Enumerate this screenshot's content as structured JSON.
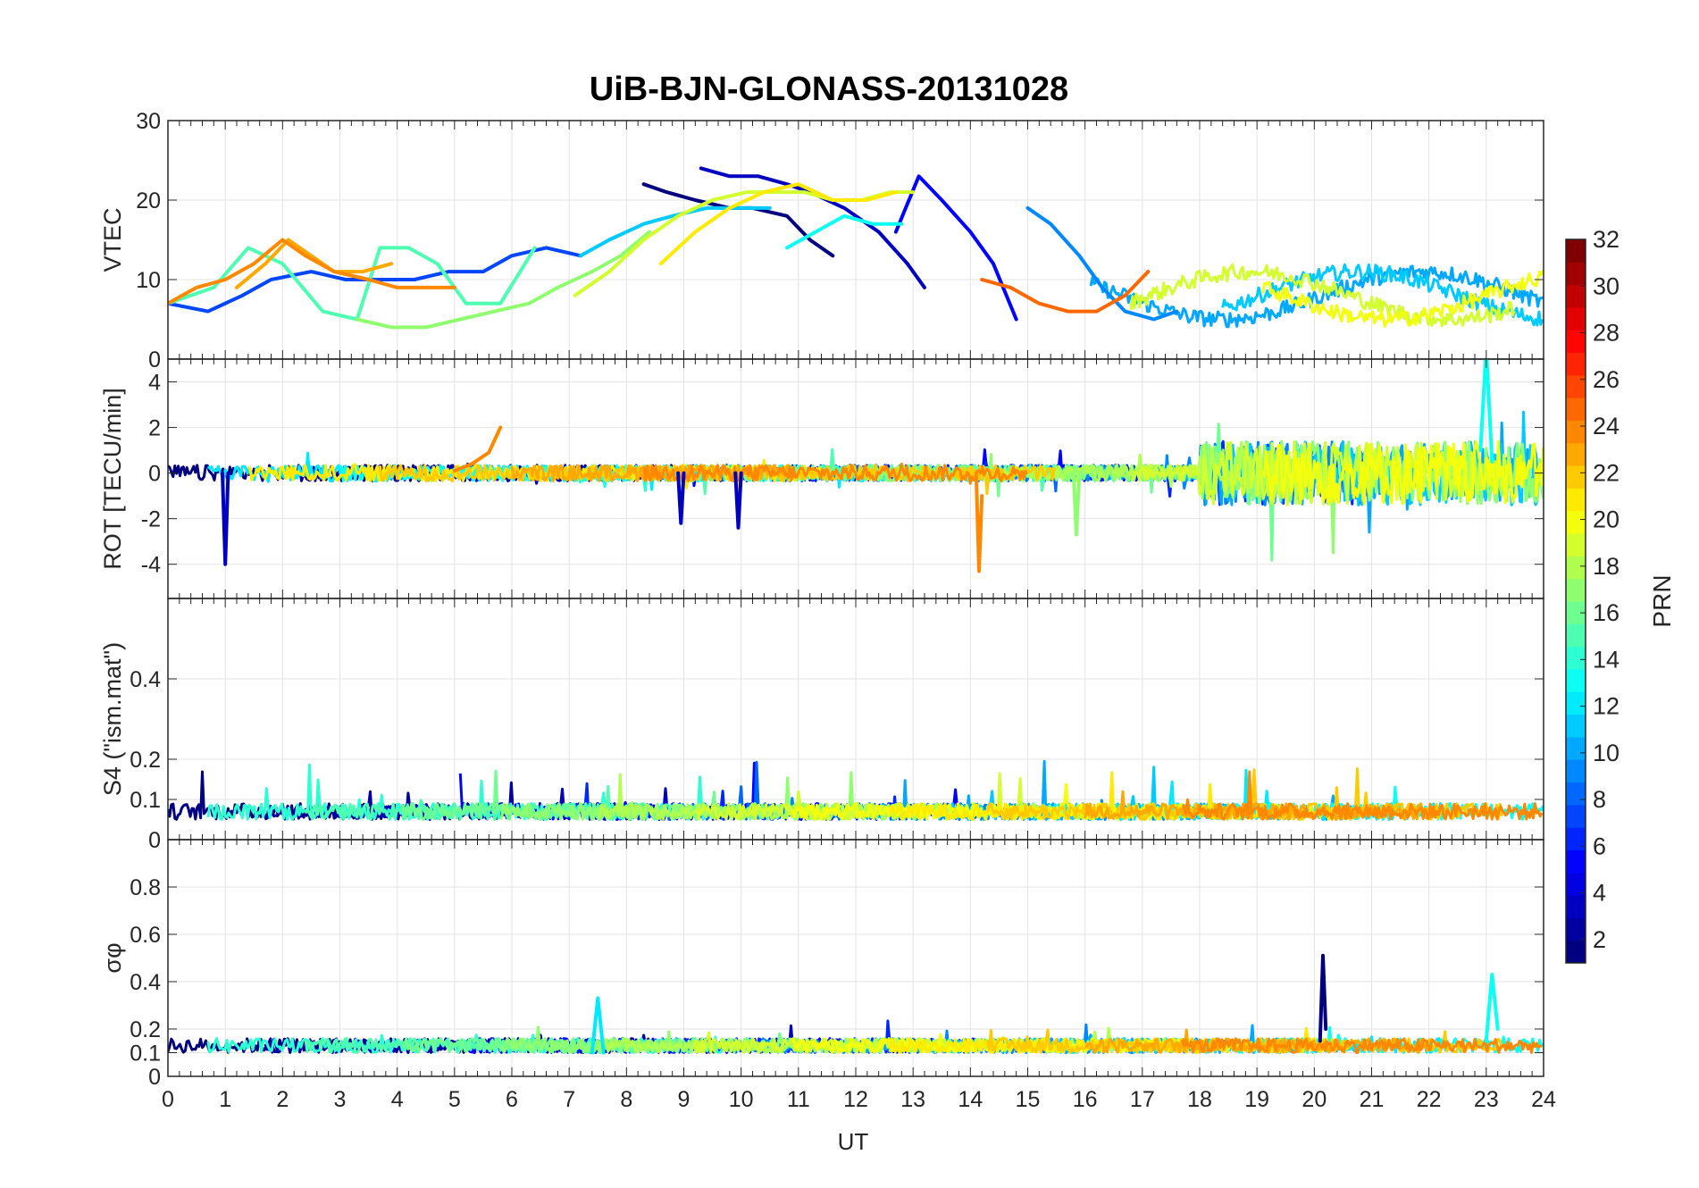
{
  "chart_data": {
    "type": "line",
    "title": "UiB-BJN-GLONASS-20131028",
    "xlabel": "UT",
    "xlim": [
      0,
      24
    ],
    "xticks": [
      "0",
      "1",
      "2",
      "3",
      "4",
      "5",
      "6",
      "7",
      "8",
      "9",
      "10",
      "11",
      "12",
      "13",
      "14",
      "15",
      "16",
      "17",
      "18",
      "19",
      "20",
      "21",
      "22",
      "23",
      "24"
    ],
    "colorbar": {
      "label": "PRN",
      "range": [
        1,
        32
      ],
      "ticks": [
        "2",
        "4",
        "6",
        "8",
        "10",
        "12",
        "14",
        "16",
        "18",
        "20",
        "22",
        "24",
        "26",
        "28",
        "30",
        "32"
      ],
      "colormap": "jet"
    },
    "panels": [
      {
        "ylabel": "VTEC",
        "ylim": [
          0,
          30
        ],
        "yticks": [
          "0",
          "10",
          "20",
          "30"
        ],
        "series": [
          {
            "prn": 1,
            "x": [
              8.3,
              8.7,
              9.2,
              9.8,
              10.2,
              10.8,
              11.2,
              11.6
            ],
            "y": [
              22,
              21,
              20,
              19,
              19,
              18,
              15,
              13
            ]
          },
          {
            "prn": 3,
            "x": [
              9.3,
              9.8,
              10.3,
              10.8,
              11.2,
              11.8,
              12.4,
              12.9,
              13.2
            ],
            "y": [
              24,
              23,
              23,
              22,
              21,
              19,
              16,
              12,
              9
            ]
          },
          {
            "prn": 5,
            "x": [
              12.7,
              13.1,
              13.5,
              14.0,
              14.4,
              14.8
            ],
            "y": [
              16,
              23,
              20,
              16,
              12,
              5
            ]
          },
          {
            "prn": 7,
            "x": [
              0.0,
              0.7,
              1.3,
              1.8,
              2.5,
              3.1,
              3.7,
              4.3,
              4.9,
              5.5,
              6.0,
              6.6,
              7.2
            ],
            "y": [
              7,
              6,
              8,
              10,
              11,
              10,
              10,
              10,
              11,
              11,
              13,
              14,
              13
            ]
          },
          {
            "prn": 9,
            "x": [
              15.0,
              15.4,
              15.9,
              16.3,
              16.7,
              17.2,
              17.6
            ],
            "y": [
              19,
              17,
              13,
              9,
              6,
              5,
              6
            ]
          },
          {
            "prn": 11,
            "x": [
              7.2,
              7.7,
              8.3,
              8.8,
              9.4,
              10.0,
              10.5
            ],
            "y": [
              13,
              15,
              17,
              18,
              19,
              19,
              19
            ]
          },
          {
            "prn": 13,
            "x": [
              10.8,
              11.3,
              11.8,
              12.3,
              12.8
            ],
            "y": [
              14,
              16,
              18,
              17,
              17
            ]
          },
          {
            "prn": 15,
            "x": [
              0.0,
              0.8,
              1.4,
              2.0,
              2.7,
              3.3,
              3.7,
              4.2,
              4.7,
              5.2,
              5.8,
              6.4
            ],
            "y": [
              7,
              9,
              14,
              12,
              6,
              5,
              14,
              14,
              12,
              7,
              7,
              14
            ]
          },
          {
            "prn": 17,
            "x": [
              3.3,
              3.9,
              4.5,
              5.1,
              5.7,
              6.3,
              6.8,
              7.4,
              7.9,
              8.4
            ],
            "y": [
              5,
              4,
              4,
              5,
              6,
              7,
              9,
              11,
              13,
              16
            ]
          },
          {
            "prn": 19,
            "x": [
              7.1,
              7.7,
              8.3,
              8.9,
              9.5,
              10.1,
              10.6,
              11.1,
              11.6,
              12.1,
              12.6,
              13.0
            ],
            "y": [
              8,
              11,
              15,
              18,
              20,
              21,
              21,
              21,
              20,
              20,
              21,
              21
            ]
          },
          {
            "prn": 21,
            "x": [
              8.6,
              9.2,
              9.8,
              10.4,
              11.0,
              11.6,
              12.2,
              12.7
            ],
            "y": [
              12,
              16,
              19,
              21,
              22,
              20,
              20,
              21
            ]
          },
          {
            "prn": 23,
            "x": [
              1.2,
              1.7,
              2.1,
              2.5,
              2.9,
              3.4,
              3.9
            ],
            "y": [
              9,
              12,
              15,
              13,
              11,
              11,
              12
            ]
          },
          {
            "prn": 24,
            "x": [
              0.0,
              0.5,
              1.0,
              1.5,
              2.0,
              2.4,
              2.9,
              3.5,
              4.0,
              4.5,
              5.0
            ],
            "y": [
              7,
              9,
              10,
              12,
              15,
              13,
              11,
              10,
              9,
              9,
              9
            ]
          },
          {
            "prn": 25,
            "x": [
              14.2,
              14.7,
              15.2,
              15.7,
              16.2,
              16.7,
              17.1
            ],
            "y": [
              10,
              9,
              7,
              6,
              6,
              8,
              11
            ]
          }
        ]
      },
      {
        "ylabel": "ROT [TECU/min]",
        "ylim": [
          -5.5,
          5
        ],
        "yticks": [
          "-4",
          "-2",
          "0",
          "2",
          "4"
        ],
        "series": [
          {
            "prn": 3,
            "x": [
              0.95,
              1.0,
              1.05
            ],
            "y": [
              0,
              -4,
              0
            ]
          },
          {
            "prn": 24,
            "x": [
              14.1,
              14.15,
              14.2
            ],
            "y": [
              0,
              -4.3,
              -1
            ]
          },
          {
            "prn": 13,
            "x": [
              22.9,
              23.0,
              23.1
            ],
            "y": [
              1,
              5.5,
              0.5
            ]
          },
          {
            "prn": 24,
            "x": [
              5.0,
              5.3,
              5.6,
              5.8
            ],
            "y": [
              0.1,
              0.4,
              0.9,
              2.0
            ]
          },
          {
            "prn": 3,
            "x": [
              8.9,
              8.95,
              9.0
            ],
            "y": [
              0,
              -2.2,
              0
            ]
          },
          {
            "prn": 3,
            "x": [
              9.9,
              9.95,
              10.0
            ],
            "y": [
              0,
              -2.4,
              0
            ]
          },
          {
            "prn": 17,
            "x": [
              15.8,
              15.85,
              15.9
            ],
            "y": [
              0,
              -2.7,
              0
            ]
          }
        ]
      },
      {
        "ylabel": "S4 (\"ism.mat\")",
        "ylim": [
          0,
          0.6
        ],
        "yticks": [
          "0",
          "0.1",
          "0.2",
          "0.4"
        ],
        "series": []
      },
      {
        "ylabel": "σφ",
        "ylim": [
          0,
          1
        ],
        "yticks": [
          "0",
          "0.1",
          "0.2",
          "0.4",
          "0.6",
          "0.8"
        ],
        "series": [
          {
            "prn": 1,
            "x": [
              20.1,
              20.15,
              20.2
            ],
            "y": [
              0.15,
              0.51,
              0.2
            ]
          },
          {
            "prn": 13,
            "x": [
              23.0,
              23.1,
              23.2
            ],
            "y": [
              0.15,
              0.43,
              0.2
            ]
          },
          {
            "prn": 12,
            "x": [
              7.4,
              7.5,
              7.6
            ],
            "y": [
              0.1,
              0.33,
              0.1
            ]
          }
        ]
      }
    ]
  }
}
